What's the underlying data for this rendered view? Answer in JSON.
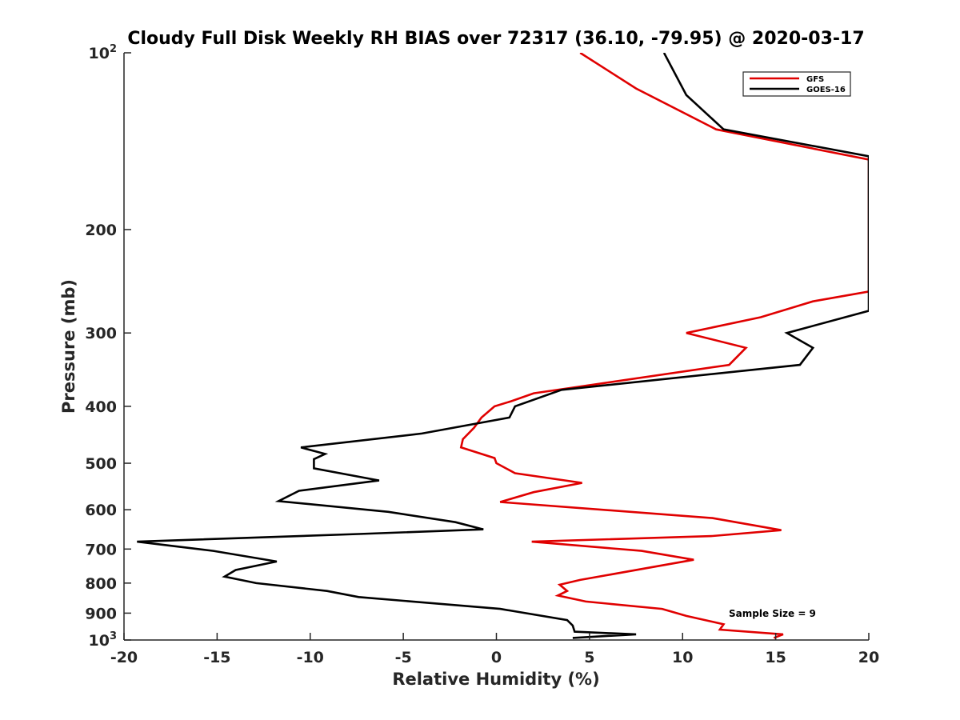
{
  "chart_data": {
    "type": "line",
    "title": "Cloudy Full Disk Weekly RH BIAS over 72317 (36.10, -79.95) @ 2020-03-17",
    "xlabel": "Relative Humidity (%)",
    "ylabel": "Pressure (mb)",
    "xlim": [
      -20,
      20
    ],
    "ylim": [
      100,
      1000
    ],
    "yscale": "log",
    "y_reversed": true,
    "grid": false,
    "x_ticks": [
      "-20",
      "-15",
      "-10",
      "-5",
      "0",
      "5",
      "10",
      "15",
      "20"
    ],
    "y_ticks": [
      {
        "base": "10",
        "exp": "2"
      },
      {
        "base": "200",
        "exp": ""
      },
      {
        "base": "300",
        "exp": ""
      },
      {
        "base": "400",
        "exp": ""
      },
      {
        "base": "500",
        "exp": ""
      },
      {
        "base": "600",
        "exp": ""
      },
      {
        "base": "700",
        "exp": ""
      },
      {
        "base": "800",
        "exp": ""
      },
      {
        "base": "900",
        "exp": ""
      },
      {
        "base": "10",
        "exp": "3"
      }
    ],
    "legend_position": "top-right",
    "annotation": "Sample Size = 9",
    "series": [
      {
        "name": "GFS",
        "color": "#e00000",
        "points": [
          [
            4.5,
            100
          ],
          [
            7.5,
            115
          ],
          [
            11.8,
            135
          ],
          [
            20,
            152
          ],
          [
            20,
            255
          ],
          [
            17,
            265
          ],
          [
            14.2,
            282
          ],
          [
            10.2,
            300
          ],
          [
            13.4,
            318
          ],
          [
            12.5,
            340
          ],
          [
            2.0,
            380
          ],
          [
            0.8,
            392
          ],
          [
            -0.1,
            400
          ],
          [
            -0.8,
            418
          ],
          [
            -1.2,
            435
          ],
          [
            -1.8,
            455
          ],
          [
            -1.9,
            470
          ],
          [
            -0.1,
            490
          ],
          [
            0.0,
            500
          ],
          [
            1.0,
            520
          ],
          [
            4.6,
            540
          ],
          [
            2.0,
            560
          ],
          [
            0.2,
            582
          ],
          [
            11.6,
            620
          ],
          [
            15.3,
            650
          ],
          [
            11.6,
            665
          ],
          [
            1.9,
            680
          ],
          [
            7.8,
            705
          ],
          [
            10.6,
            730
          ],
          [
            4.5,
            790
          ],
          [
            3.4,
            805
          ],
          [
            3.8,
            825
          ],
          [
            3.3,
            840
          ],
          [
            4.8,
            860
          ],
          [
            8.9,
            885
          ],
          [
            10.2,
            910
          ],
          [
            12.2,
            940
          ],
          [
            12.0,
            960
          ],
          [
            15.4,
            978
          ],
          [
            14.9,
            992
          ]
        ]
      },
      {
        "name": "GOES-16",
        "color": "#000000",
        "points": [
          [
            9.0,
            100
          ],
          [
            10.2,
            118
          ],
          [
            12.2,
            135
          ],
          [
            20,
            150
          ],
          [
            20,
            275
          ],
          [
            15.6,
            300
          ],
          [
            17.0,
            318
          ],
          [
            16.3,
            340
          ],
          [
            3.5,
            375
          ],
          [
            1.0,
            400
          ],
          [
            0.7,
            418
          ],
          [
            -4.0,
            445
          ],
          [
            -10.5,
            470
          ],
          [
            -9.2,
            482
          ],
          [
            -9.8,
            492
          ],
          [
            -9.8,
            510
          ],
          [
            -6.3,
            535
          ],
          [
            -10.6,
            557
          ],
          [
            -11.7,
            580
          ],
          [
            -5.8,
            605
          ],
          [
            -2.2,
            630
          ],
          [
            -0.7,
            648
          ],
          [
            -7.4,
            660
          ],
          [
            -19.3,
            680
          ],
          [
            -15.2,
            705
          ],
          [
            -11.8,
            735
          ],
          [
            -14.0,
            760
          ],
          [
            -14.6,
            780
          ],
          [
            -12.9,
            800
          ],
          [
            -9.1,
            825
          ],
          [
            -7.4,
            845
          ],
          [
            0.2,
            885
          ],
          [
            3.8,
            925
          ],
          [
            4.1,
            945
          ],
          [
            4.2,
            968
          ],
          [
            7.5,
            978
          ],
          [
            4.1,
            992
          ]
        ]
      }
    ]
  }
}
